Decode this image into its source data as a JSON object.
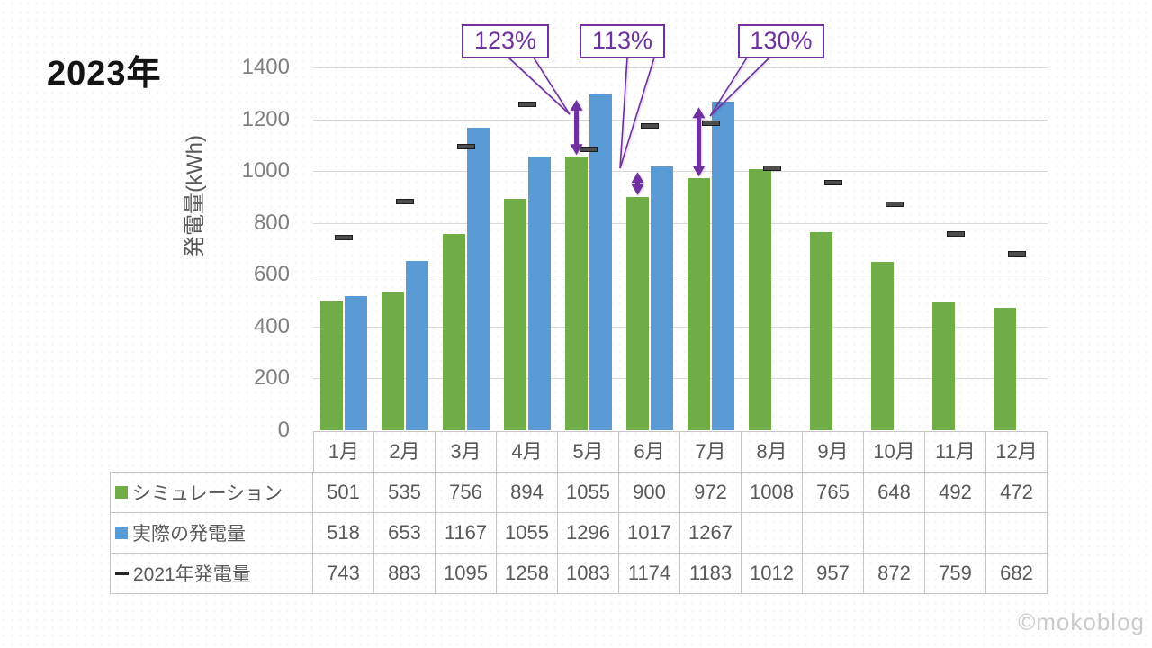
{
  "slide": {
    "title": "2023年",
    "watermark": "©mokoblog"
  },
  "chart_data": {
    "type": "bar",
    "title": "2023年",
    "xlabel": "",
    "ylabel": "発電量(kWh)",
    "ylim": [
      0,
      1400
    ],
    "yticks": [
      0,
      200,
      400,
      600,
      800,
      1000,
      1200,
      1400
    ],
    "grid": true,
    "legend_position": "table-left",
    "categories": [
      "1月",
      "2月",
      "3月",
      "4月",
      "5月",
      "6月",
      "7月",
      "8月",
      "9月",
      "10月",
      "11月",
      "12月"
    ],
    "series": [
      {
        "key": "simulation",
        "name": "シミュレーション",
        "marker": "square",
        "color": "#70AD47",
        "values": [
          501,
          535,
          756,
          894,
          1055,
          900,
          972,
          1008,
          765,
          648,
          492,
          472
        ]
      },
      {
        "key": "actual",
        "name": "実際の発電量",
        "marker": "square",
        "color": "#5B9BD5",
        "values": [
          518,
          653,
          1167,
          1055,
          1296,
          1017,
          1267,
          null,
          null,
          null,
          null,
          null
        ]
      },
      {
        "key": "y2021",
        "name": "2021年発電量",
        "marker": "dash",
        "color": "#404040",
        "values": [
          743,
          883,
          1095,
          1258,
          1083,
          1174,
          1183,
          1012,
          957,
          872,
          759,
          682
        ]
      }
    ],
    "annotations": [
      {
        "label": "123%",
        "category": "5月",
        "month_index": 4,
        "from_value": 1055,
        "to_value": 1296
      },
      {
        "label": "113%",
        "category": "6月",
        "month_index": 5,
        "from_value": 900,
        "to_value": 1017
      },
      {
        "label": "130%",
        "category": "7月",
        "month_index": 6,
        "from_value": 972,
        "to_value": 1267
      }
    ],
    "annotation_color": "#7030A0"
  }
}
